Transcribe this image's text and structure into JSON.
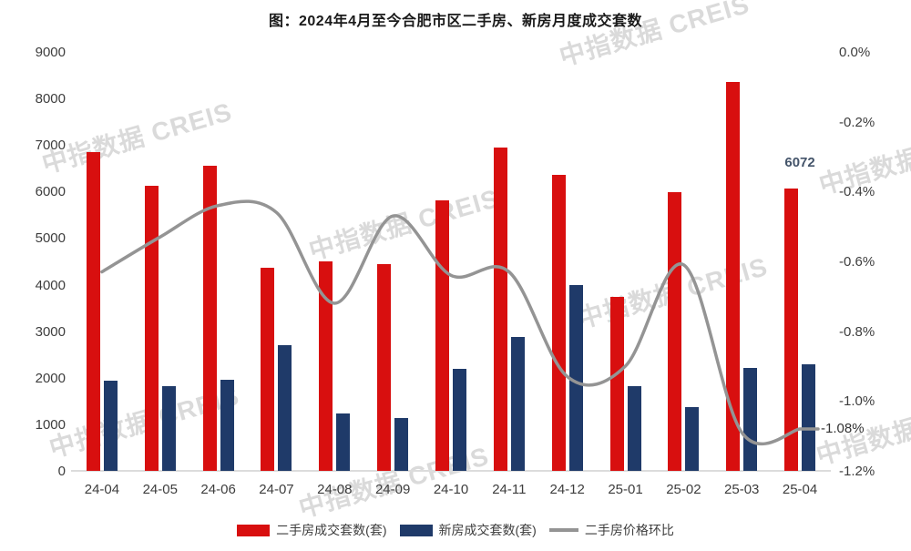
{
  "title": "图：2024年4月至今合肥市区二手房、新房月度成交套数",
  "watermark": {
    "text": "中指数据 CREIS"
  },
  "chart_data": {
    "type": "bar",
    "subtype": "dual-axis bar + smooth line",
    "categories": [
      "24-04",
      "24-05",
      "24-06",
      "24-07",
      "24-08",
      "24-09",
      "24-10",
      "24-11",
      "24-12",
      "25-01",
      "25-02",
      "25-03",
      "25-04"
    ],
    "series": [
      {
        "name": "二手房成交套数(套)",
        "type": "bar",
        "axis": "left",
        "color": "#d80f0f",
        "values": [
          6850,
          6120,
          6550,
          4360,
          4500,
          4440,
          5820,
          6940,
          6350,
          3740,
          5980,
          8360,
          6072
        ]
      },
      {
        "name": "新房成交套数(套)",
        "type": "bar",
        "axis": "left",
        "color": "#1f3a69",
        "values": [
          1930,
          1810,
          1950,
          2700,
          1230,
          1130,
          2200,
          2880,
          4000,
          1810,
          1360,
          2220,
          2280
        ]
      },
      {
        "name": "二手房价格环比",
        "type": "line",
        "axis": "right",
        "color": "#949494",
        "values": [
          -0.63,
          -0.53,
          -0.44,
          -0.46,
          -0.72,
          -0.47,
          -0.64,
          -0.63,
          -0.93,
          -0.9,
          -0.61,
          -1.09,
          -1.08
        ]
      }
    ],
    "left_axis": {
      "min": 0,
      "max": 9000,
      "step": 1000,
      "tick_labels": [
        "9000",
        "8000",
        "7000",
        "6000",
        "5000",
        "4000",
        "3000",
        "2000",
        "1000",
        "0"
      ]
    },
    "right_axis": {
      "min": -1.2,
      "max": 0,
      "step": 0.2,
      "tick_labels": [
        "0.0%",
        "-0.2%",
        "-0.4%",
        "-0.6%",
        "-0.8%",
        "-1.0%",
        "-1.2%"
      ]
    },
    "data_labels": [
      {
        "series": 0,
        "category": "25-04",
        "index": 12,
        "text": "6072"
      },
      {
        "series": 2,
        "category": "25-04",
        "index": 12,
        "text": "-1.08%"
      }
    ],
    "legend_position": "bottom",
    "grid": "off"
  }
}
